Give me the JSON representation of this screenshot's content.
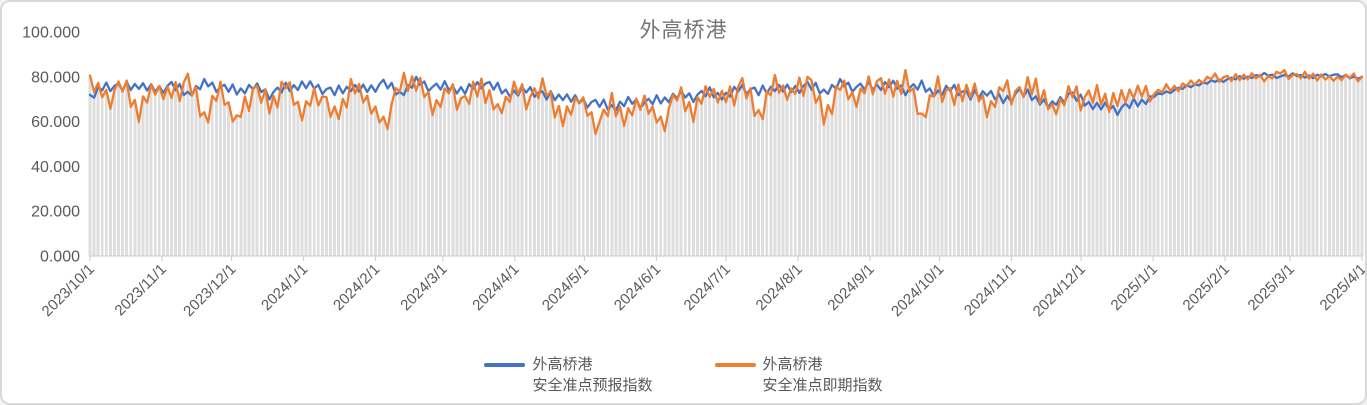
{
  "chart_data": {
    "type": "line",
    "title": "外高桥港",
    "y_axis": {
      "ticks": [
        "100.000",
        "80.000",
        "60.000",
        "40.000",
        "20.000",
        "0.000"
      ],
      "tick_values": [
        100,
        80,
        60,
        40,
        20,
        0
      ],
      "min": 0,
      "max": 100
    },
    "x_axis": {
      "start": "2023/10/1",
      "end": "2025/4/1",
      "ticks": [
        "2023/10/1",
        "2023/11/1",
        "2023/12/1",
        "2024/1/1",
        "2024/2/1",
        "2024/3/1",
        "2024/4/1",
        "2024/5/1",
        "2024/6/1",
        "2024/7/1",
        "2024/8/1",
        "2024/9/1",
        "2024/10/1",
        "2024/11/1",
        "2024/12/1",
        "2025/1/1",
        "2025/2/1",
        "2025/3/1",
        "2025/4/1"
      ]
    },
    "sampling": {
      "note": "underlying data is daily; values below are weekly anchor estimates read from the plot",
      "interval_days": 7,
      "densify_substeps": 4,
      "calm_from_anchor": 65,
      "calm_scale": 0.35
    },
    "series": [
      {
        "id": "forecast",
        "name": "外高桥港安全准点预报指数",
        "color": "#4472C4",
        "clamp": [
          63,
          83.5
        ],
        "texture": [
          0.9,
          -1.6,
          2,
          -0.8,
          1.4,
          -2.2,
          0.5,
          1.7,
          -1.2,
          2.3,
          -1.9,
          0.3,
          -2.4
        ],
        "weekly_values": [
          71,
          76,
          75,
          77,
          74,
          76,
          73,
          77,
          75,
          74,
          76,
          72,
          75,
          77,
          75,
          73,
          76,
          74,
          77,
          73,
          78,
          75,
          76,
          74,
          77,
          75,
          73,
          74,
          71,
          72,
          69,
          68,
          67,
          69,
          68,
          70,
          72,
          71,
          73,
          72,
          75,
          73,
          76,
          74,
          76,
          74,
          77,
          75,
          76,
          77,
          74,
          76,
          73,
          75,
          71,
          74,
          69,
          73,
          71,
          67,
          72,
          69,
          67,
          65,
          68,
          71,
          73,
          75,
          77,
          78,
          79,
          80,
          81,
          80,
          81,
          80,
          81,
          80,
          80
        ]
      },
      {
        "id": "actual",
        "name": "外高桥港安全准点即期指数",
        "color": "#ED7D31",
        "clamp": [
          54.5,
          83.5
        ],
        "texture": [
          1.6,
          -3.5,
          2.8,
          -1.4,
          4.2,
          -5.8,
          1,
          3.4,
          -2.6,
          4.8,
          -4.4,
          1.2,
          -6.2,
          3,
          -2,
          3.8,
          -3
        ],
        "weekly_values": [
          79,
          70,
          76,
          66,
          75,
          72,
          78,
          63,
          74,
          60,
          74,
          68,
          77,
          64,
          73,
          62,
          76,
          70,
          58,
          76,
          80,
          66,
          74,
          68,
          78,
          64,
          75,
          70,
          76,
          60,
          72,
          56,
          68,
          63,
          70,
          58,
          72,
          66,
          74,
          70,
          76,
          64,
          77,
          72,
          79,
          63,
          76,
          70,
          78,
          74,
          80,
          62,
          76,
          70,
          77,
          65,
          75,
          72,
          78,
          64,
          73,
          70,
          72,
          69,
          74,
          71,
          75,
          76,
          78,
          80,
          79,
          81,
          79,
          82,
          80,
          81,
          79,
          80,
          80
        ]
      }
    ],
    "bars": {
      "color": "#dedede",
      "follows_series": "actual"
    },
    "grid": "off",
    "legend_position": "bottom"
  },
  "legend": {
    "items": [
      {
        "line1": "外高桥港",
        "line2": "安全准点预报指数",
        "color": "#4472C4"
      },
      {
        "line1": "外高桥港",
        "line2": "安全准点即期指数",
        "color": "#ED7D31"
      }
    ]
  },
  "styles": {
    "accent_blue": "#4472C4",
    "accent_orange": "#ED7D31",
    "bar_fill": "#dedede",
    "axis_text_color": "#595959",
    "title_color": "#757575",
    "axis_line_color": "#d0d0d0",
    "frame_border_color": "#d9d9d9"
  }
}
